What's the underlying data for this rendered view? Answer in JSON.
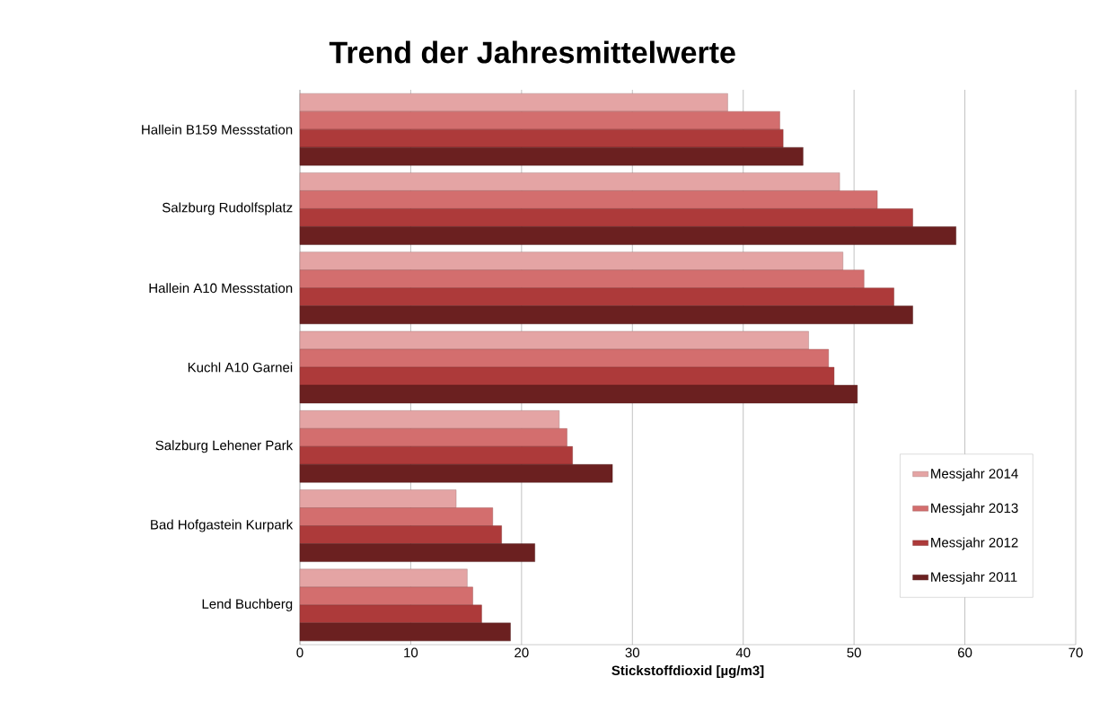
{
  "chart_data": {
    "type": "bar",
    "orientation": "horizontal",
    "title": "Trend der Jahresmittelwerte",
    "xlabel": "Stickstoffdioxid [µg/m3]",
    "categories": [
      "Hallein B159 Messstation",
      "Salzburg Rudolfsplatz",
      "Hallein A10 Messstation",
      "Kuchl A10 Garnei",
      "Salzburg Lehener Park",
      "Bad Hofgastein Kurpark",
      "Lend Buchberg"
    ],
    "series": [
      {
        "name": "Messjahr 2014",
        "color": "#e4a4a4",
        "values": [
          38.6,
          48.7,
          49.0,
          45.9,
          23.4,
          14.1,
          15.1
        ]
      },
      {
        "name": "Messjahr 2013",
        "color": "#d36e6e",
        "values": [
          43.3,
          52.1,
          50.9,
          47.7,
          24.1,
          17.4,
          15.6
        ]
      },
      {
        "name": "Messjahr 2012",
        "color": "#ad3a3a",
        "values": [
          43.6,
          55.3,
          53.6,
          48.2,
          24.6,
          18.2,
          16.4
        ]
      },
      {
        "name": "Messjahr 2011",
        "color": "#6b2020",
        "values": [
          45.4,
          59.2,
          55.3,
          50.3,
          28.2,
          21.2,
          19.0
        ]
      }
    ],
    "xlim": [
      0,
      70
    ],
    "xticks": [
      0,
      10,
      20,
      30,
      40,
      50,
      60,
      70
    ],
    "grid": "x",
    "legend": "bottom right"
  }
}
